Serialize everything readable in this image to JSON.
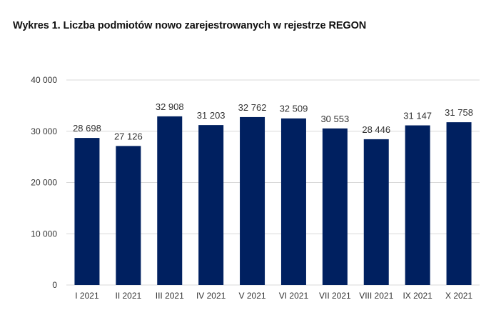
{
  "chart_data": {
    "type": "bar",
    "title": "Wykres 1. Liczba podmiotów nowo zarejestrowanych w rejestrze REGON",
    "xlabel": "",
    "ylabel": "",
    "categories": [
      "I 2021",
      "II 2021",
      "III 2021",
      "IV 2021",
      "V 2021",
      "VI 2021",
      "VII 2021",
      "VIII 2021",
      "IX 2021",
      "X 2021"
    ],
    "values": [
      28698,
      27126,
      32908,
      31203,
      32762,
      32509,
      30553,
      28446,
      31147,
      31758
    ],
    "value_labels": [
      "28 698",
      "27 126",
      "32 908",
      "31 203",
      "32 762",
      "32 509",
      "30 553",
      "28 446",
      "31 147",
      "31 758"
    ],
    "ylim": [
      0,
      40000
    ],
    "yticks": [
      0,
      10000,
      20000,
      30000,
      40000
    ],
    "ytick_labels": [
      "0",
      "10 000",
      "20 000",
      "30 000",
      "40 000"
    ],
    "grid": true,
    "legend": "none",
    "bar_color": "#002060",
    "grid_color": "#d9d9d9"
  }
}
